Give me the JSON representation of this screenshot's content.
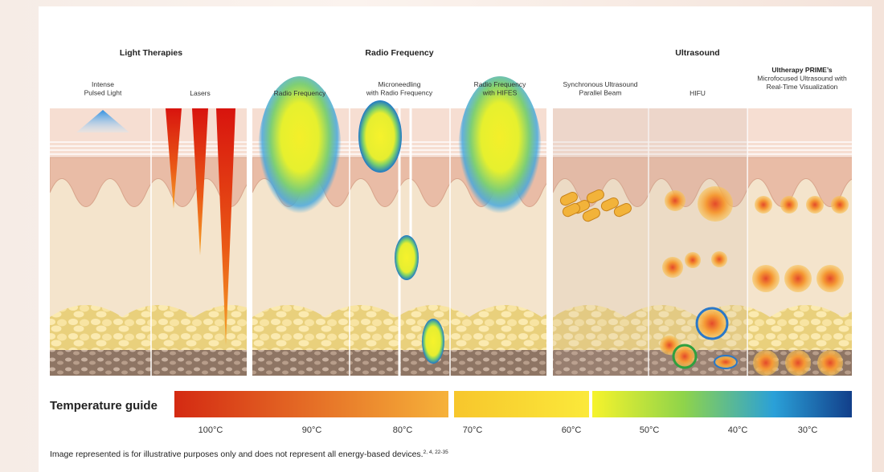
{
  "groups": [
    {
      "title": "Light Therapies"
    },
    {
      "title": "Radio Frequency"
    },
    {
      "title": "Ultrasound"
    }
  ],
  "columns": [
    {
      "lines": [
        "Intense",
        "Pulsed Light"
      ]
    },
    {
      "lines": [
        "Lasers"
      ]
    },
    {
      "lines": [
        "Radio Frequency"
      ]
    },
    {
      "lines": [
        "Microneedling",
        "with Radio Frequency"
      ]
    },
    {
      "lines": [
        "Radio Frequency",
        "with HIFES"
      ]
    },
    {
      "lines": [
        "Synchronous Ultrasound",
        "Parallel Beam"
      ]
    },
    {
      "lines": [
        "HIFU"
      ]
    },
    {
      "lines": [
        "Ultherapy PRIME’s",
        "Microfocused Ultrasound with",
        "Real-Time Visualization"
      ]
    }
  ],
  "temperature_guide": {
    "title": "Temperature guide",
    "labels": [
      "100°C",
      "90°C",
      "80°C",
      "70°C",
      "60°C",
      "50°C",
      "40°C",
      "30°C"
    ]
  },
  "footnote": {
    "text": "Image represented is for illustrative purposes only and does not represent all energy-based devices.",
    "refs": "2, 4, 22-35"
  }
}
